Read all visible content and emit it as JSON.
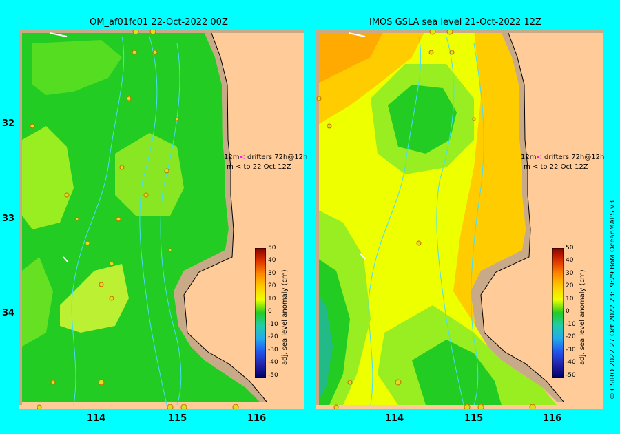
{
  "panels": [
    {
      "title": "OM_af01fc01 22-Oct-2022 00Z"
    },
    {
      "title": "IMOS GSLA sea level  21-Oct-2022 12Z"
    }
  ],
  "axes": {
    "lon_ticks": [
      "114",
      "115",
      "116"
    ],
    "lat_ticks": [
      "32",
      "33",
      "34"
    ]
  },
  "drifter_note": {
    "line1_prefix": "12m",
    "line1_arrow": "<",
    "line1_text": "drifters 72h@12h",
    "line2_prefix": "m",
    "line2_arrow": "<",
    "line2_text": "to 22 Oct 12Z"
  },
  "colorbar": {
    "label": "adj. sea level anomaly (cm)",
    "ticks": [
      "50",
      "40",
      "30",
      "20",
      "10",
      "0",
      "-10",
      "-20",
      "-30",
      "-40",
      "-50"
    ]
  },
  "credit": "© CSIRO 2022   27 Oct 2022 23:19:29 BoM OceanMAPS v3",
  "colors": {
    "background": "#00ffff",
    "land": "#ffcc99",
    "shelf": "#c8aa88",
    "green": "#22cc22",
    "yellow_green": "#99ee22",
    "yellow": "#eeff00",
    "orange": "#ffaa00"
  }
}
